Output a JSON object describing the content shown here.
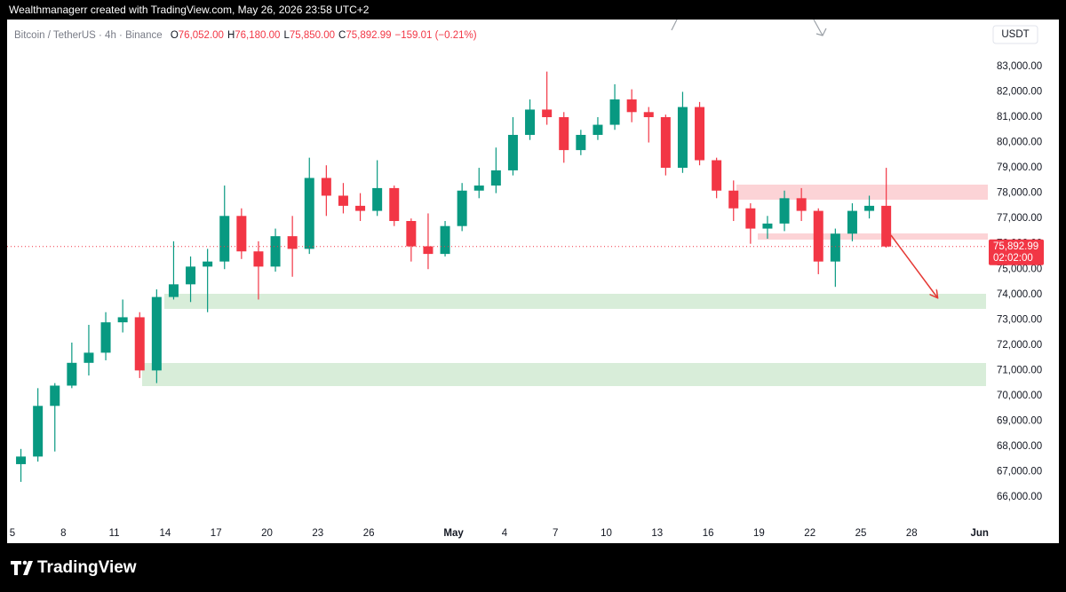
{
  "header": {
    "attribution": "Wealthmanagerr created with TradingView.com, May 26, 2026 23:58 UTC+2"
  },
  "footer": {
    "brand": "TradingView"
  },
  "chart_data": {
    "type": "candlestick",
    "symbol": "Bitcoin / TetherUS · 4h · Binance",
    "legend": [
      {
        "key": "O",
        "value": "76,052.00"
      },
      {
        "key": "H",
        "value": "76,180.00"
      },
      {
        "key": "L",
        "value": "75,850.00"
      },
      {
        "key": "C",
        "value": "75,892.99"
      }
    ],
    "change": "−159.01 (−0.21%)",
    "currency": "USDT",
    "up_color": "#089981",
    "down_color": "#f23645",
    "last_price": {
      "value": 75892.99,
      "label": "75,892.99"
    },
    "countdown": "02:02:00",
    "x": [
      "2026-04-05",
      "2026-04-06",
      "2026-04-07",
      "2026-04-08",
      "2026-04-09",
      "2026-04-10",
      "2026-04-11",
      "2026-04-12",
      "2026-04-13",
      "2026-04-14",
      "2026-04-15",
      "2026-04-16",
      "2026-04-17",
      "2026-04-18",
      "2026-04-19",
      "2026-04-20",
      "2026-04-21",
      "2026-04-22",
      "2026-04-23",
      "2026-04-24",
      "2026-04-25",
      "2026-04-26",
      "2026-04-27",
      "2026-04-28",
      "2026-04-29",
      "2026-04-30",
      "2026-05-01",
      "2026-05-02",
      "2026-05-03",
      "2026-05-04",
      "2026-05-05",
      "2026-05-06",
      "2026-05-07",
      "2026-05-08",
      "2026-05-09",
      "2026-05-10",
      "2026-05-11",
      "2026-05-12",
      "2026-05-13",
      "2026-05-14",
      "2026-05-15",
      "2026-05-16",
      "2026-05-17",
      "2026-05-18",
      "2026-05-19",
      "2026-05-20",
      "2026-05-21",
      "2026-05-22",
      "2026-05-23",
      "2026-05-24",
      "2026-05-25",
      "2026-05-26"
    ],
    "open": [
      67300,
      67600,
      69600,
      70400,
      71300,
      71700,
      72900,
      73100,
      71000,
      73900,
      74400,
      75100,
      75300,
      77100,
      75700,
      75100,
      76300,
      75800,
      78600,
      77900,
      77500,
      77300,
      78200,
      76900,
      75900,
      75600,
      76700,
      78100,
      78300,
      78900,
      80300,
      81300,
      81000,
      79700,
      80300,
      80700,
      81700,
      81200,
      81000,
      79000,
      81400,
      79300,
      78100,
      77400,
      76600,
      76800,
      77800,
      77300,
      75300,
      76400,
      77300,
      77500
    ],
    "high": [
      67900,
      70300,
      70500,
      72100,
      72800,
      73300,
      73800,
      73300,
      74200,
      76100,
      75500,
      75800,
      78300,
      77400,
      76100,
      76600,
      77100,
      79400,
      79100,
      78400,
      78000,
      79300,
      78300,
      77000,
      77200,
      76900,
      78400,
      79000,
      79800,
      81000,
      81700,
      82800,
      81200,
      80500,
      81000,
      82300,
      82100,
      81400,
      81100,
      82000,
      81600,
      79400,
      78500,
      77600,
      77100,
      78100,
      78200,
      77400,
      76600,
      77600,
      77900,
      79000
    ],
    "low": [
      66600,
      67400,
      67800,
      70300,
      70800,
      71400,
      72500,
      70700,
      70500,
      73800,
      73700,
      73300,
      75000,
      75400,
      73800,
      74900,
      74700,
      75600,
      77100,
      77200,
      76900,
      77100,
      76700,
      75300,
      75000,
      75500,
      76500,
      77800,
      78000,
      78700,
      80100,
      80700,
      79200,
      79500,
      80100,
      80500,
      80800,
      80000,
      78700,
      78800,
      79100,
      77800,
      76900,
      76000,
      76200,
      76500,
      76900,
      74800,
      74300,
      76100,
      77000,
      75850
    ],
    "close": [
      67600,
      69600,
      70400,
      71300,
      71700,
      72900,
      73100,
      71000,
      73900,
      74400,
      75100,
      75300,
      77100,
      75700,
      75100,
      76300,
      75800,
      78600,
      77900,
      77500,
      77300,
      78200,
      76900,
      75900,
      75600,
      76700,
      78100,
      78300,
      78900,
      80300,
      81300,
      81000,
      79700,
      80300,
      80700,
      81700,
      81200,
      81000,
      79000,
      81400,
      79300,
      78100,
      77400,
      76600,
      76800,
      77800,
      77300,
      75300,
      76400,
      77300,
      77500,
      75892.99
    ],
    "xlim": [
      "2026-04-04",
      "2026-06-02"
    ],
    "xticks": [
      {
        "value": "2026-04-05",
        "label": "5"
      },
      {
        "value": "2026-04-08",
        "label": "8"
      },
      {
        "value": "2026-04-11",
        "label": "11"
      },
      {
        "value": "2026-04-14",
        "label": "14"
      },
      {
        "value": "2026-04-17",
        "label": "17"
      },
      {
        "value": "2026-04-20",
        "label": "20"
      },
      {
        "value": "2026-04-23",
        "label": "23"
      },
      {
        "value": "2026-04-26",
        "label": "26"
      },
      {
        "value": "2026-05-01",
        "label": "May"
      },
      {
        "value": "2026-05-04",
        "label": "4"
      },
      {
        "value": "2026-05-07",
        "label": "7"
      },
      {
        "value": "2026-05-10",
        "label": "10"
      },
      {
        "value": "2026-05-13",
        "label": "13"
      },
      {
        "value": "2026-05-16",
        "label": "16"
      },
      {
        "value": "2026-05-19",
        "label": "19"
      },
      {
        "value": "2026-05-22",
        "label": "22"
      },
      {
        "value": "2026-05-25",
        "label": "25"
      },
      {
        "value": "2026-05-28",
        "label": "28"
      },
      {
        "value": "2026-06-01",
        "label": "Jun"
      }
    ],
    "ylim": [
      64950,
      84750
    ],
    "yticks": [
      {
        "value": 66000,
        "label": "66,000.00"
      },
      {
        "value": 67000,
        "label": "67,000.00"
      },
      {
        "value": 68000,
        "label": "68,000.00"
      },
      {
        "value": 69000,
        "label": "69,000.00"
      },
      {
        "value": 70000,
        "label": "70,000.00"
      },
      {
        "value": 71000,
        "label": "71,000.00"
      },
      {
        "value": 72000,
        "label": "72,000.00"
      },
      {
        "value": 73000,
        "label": "73,000.00"
      },
      {
        "value": 74000,
        "label": "74,000.00"
      },
      {
        "value": 75000,
        "label": "75,000.00"
      },
      {
        "value": 76000,
        "label": "76,000.00"
      },
      {
        "value": 77000,
        "label": "77,000.00"
      },
      {
        "value": 78000,
        "label": "78,000.00"
      },
      {
        "value": 79000,
        "label": "79,000.00"
      },
      {
        "value": 80000,
        "label": "80,000.00"
      },
      {
        "value": 81000,
        "label": "81,000.00"
      },
      {
        "value": 82000,
        "label": "82,000.00"
      },
      {
        "value": 83000,
        "label": "83,000.00"
      }
    ]
  }
}
